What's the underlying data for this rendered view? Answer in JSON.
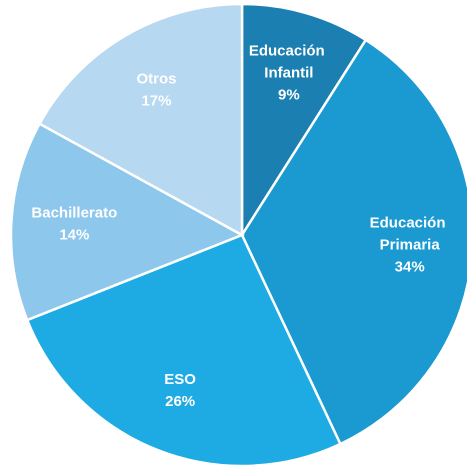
{
  "chart_data": {
    "type": "pie",
    "categories": [
      "Educación Infantil",
      "Educación Primaria",
      "ESO",
      "Bachillerato",
      "Otros"
    ],
    "values": [
      9,
      34,
      26,
      14,
      17
    ],
    "value_labels": [
      "9%",
      "34%",
      "26%",
      "14%",
      "17%"
    ],
    "colors": [
      "#1b80b1",
      "#1a9ad0",
      "#1eabe3",
      "#8dc7eb",
      "#b6d8f1"
    ]
  }
}
